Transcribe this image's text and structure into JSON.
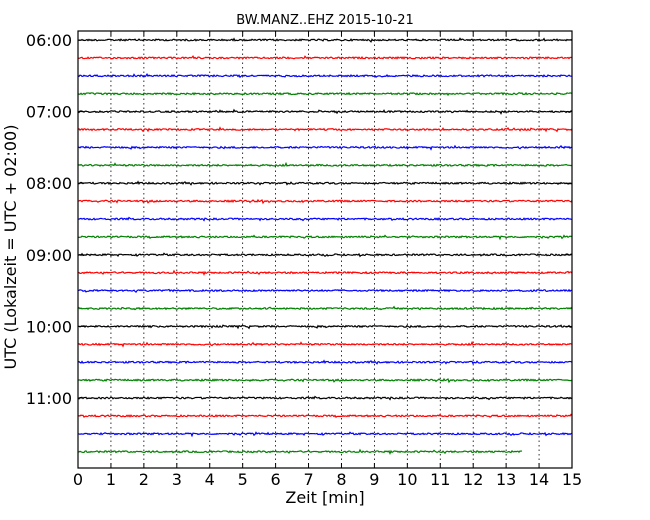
{
  "chart_data": {
    "type": "line",
    "title": "BW.MANZ..EHZ 2015-10-21",
    "xlabel": "Zeit  [min]",
    "ylabel": "UTC (Lokalzeit = UTC + 02:00)",
    "xlim": [
      0,
      15
    ],
    "x_ticks": [
      "0",
      "1",
      "2",
      "3",
      "4",
      "5",
      "6",
      "7",
      "8",
      "9",
      "10",
      "11",
      "12",
      "13",
      "14",
      "15"
    ],
    "y_ticks": [
      "06:00",
      "07:00",
      "08:00",
      "09:00",
      "10:00",
      "11:00"
    ],
    "grid": "vertical dotted",
    "color_cycle": [
      "#000000",
      "#ff0000",
      "#0000ff",
      "#008000"
    ],
    "traces": [
      {
        "start": "06:00",
        "end_min": 15
      },
      {
        "start": "06:15",
        "end_min": 15
      },
      {
        "start": "06:30",
        "end_min": 15
      },
      {
        "start": "06:45",
        "end_min": 15
      },
      {
        "start": "07:00",
        "end_min": 15
      },
      {
        "start": "07:15",
        "end_min": 15
      },
      {
        "start": "07:30",
        "end_min": 15
      },
      {
        "start": "07:45",
        "end_min": 15
      },
      {
        "start": "08:00",
        "end_min": 15
      },
      {
        "start": "08:15",
        "end_min": 15
      },
      {
        "start": "08:30",
        "end_min": 15
      },
      {
        "start": "08:45",
        "end_min": 15
      },
      {
        "start": "09:00",
        "end_min": 15
      },
      {
        "start": "09:15",
        "end_min": 15
      },
      {
        "start": "09:30",
        "end_min": 15
      },
      {
        "start": "09:45",
        "end_min": 15
      },
      {
        "start": "10:00",
        "end_min": 15
      },
      {
        "start": "10:15",
        "end_min": 15
      },
      {
        "start": "10:30",
        "end_min": 15
      },
      {
        "start": "10:45",
        "end_min": 15
      },
      {
        "start": "11:00",
        "end_min": 15
      },
      {
        "start": "11:15",
        "end_min": 15
      },
      {
        "start": "11:30",
        "end_min": 15
      },
      {
        "start": "11:45",
        "end_min": 13.5
      }
    ]
  }
}
